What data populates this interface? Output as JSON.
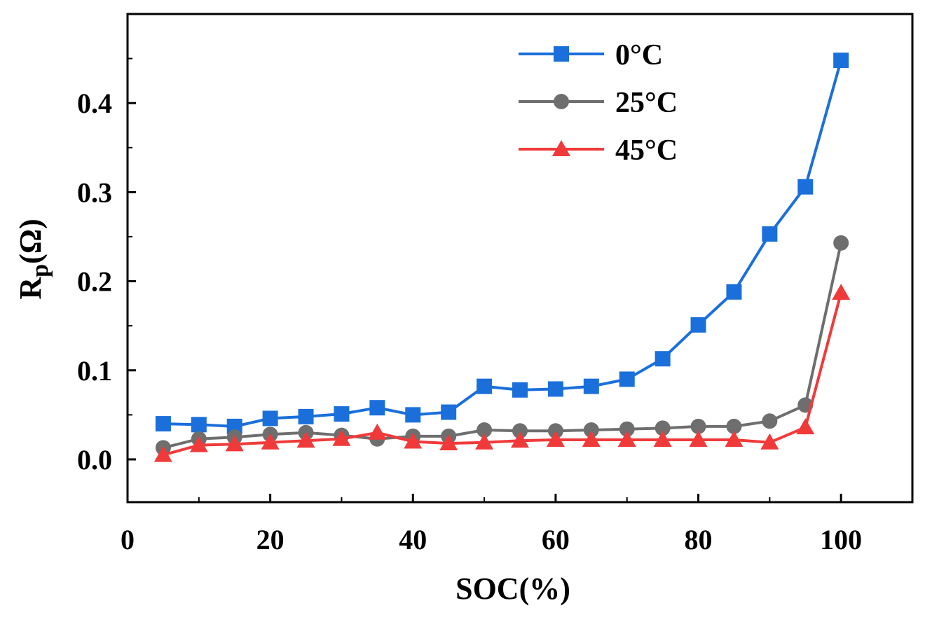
{
  "chart_data": {
    "type": "line",
    "title": "",
    "xlabel": "SOC(%)",
    "ylabel": {
      "main": "R",
      "sub": "p",
      "unit": "(Ω)"
    },
    "xlim": [
      0,
      110
    ],
    "ylim": [
      -0.048,
      0.5
    ],
    "xticks": [
      0,
      20,
      40,
      60,
      80,
      100
    ],
    "xtick_labels": [
      "0",
      "20",
      "40",
      "60",
      "80",
      "100"
    ],
    "yticks": [
      0.0,
      0.1,
      0.2,
      0.3,
      0.4
    ],
    "ytick_labels": [
      "0.0",
      "0.1",
      "0.2",
      "0.3",
      "0.4"
    ],
    "x": [
      5,
      10,
      15,
      20,
      25,
      30,
      35,
      40,
      45,
      50,
      55,
      60,
      65,
      70,
      75,
      80,
      85,
      90,
      95,
      100
    ],
    "series": [
      {
        "name": "0°C",
        "color": "#1a6fdb",
        "marker": "square",
        "values": [
          0.04,
          0.039,
          0.037,
          0.046,
          0.048,
          0.051,
          0.058,
          0.05,
          0.053,
          0.082,
          0.078,
          0.079,
          0.082,
          0.09,
          0.113,
          0.151,
          0.188,
          0.253,
          0.306,
          0.448
        ]
      },
      {
        "name": "25°C",
        "color": "#6e6e6e",
        "marker": "circle",
        "values": [
          0.013,
          0.023,
          0.025,
          0.028,
          0.03,
          0.027,
          0.023,
          0.026,
          0.026,
          0.033,
          0.032,
          0.032,
          0.033,
          0.034,
          0.035,
          0.037,
          0.037,
          0.043,
          0.061,
          0.243
        ]
      },
      {
        "name": "45°C",
        "color": "#f03a3a",
        "marker": "triangle",
        "values": [
          0.005,
          0.016,
          0.017,
          0.019,
          0.021,
          0.023,
          0.03,
          0.02,
          0.018,
          0.019,
          0.021,
          0.022,
          0.022,
          0.022,
          0.022,
          0.022,
          0.022,
          0.019,
          0.036,
          0.187
        ]
      }
    ],
    "legend": {
      "position": "top-right"
    },
    "grid": false
  }
}
